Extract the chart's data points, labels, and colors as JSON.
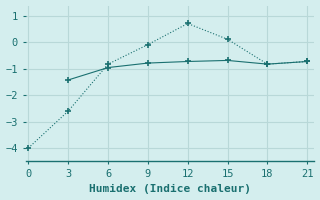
{
  "xlabel": "Humidex (Indice chaleur)",
  "bg_color": "#d4eeee",
  "grid_color": "#b8d8d8",
  "line_color": "#1a7070",
  "line1_x": [
    0,
    3,
    6,
    9,
    12,
    15,
    18,
    21
  ],
  "line1_y": [
    -4.0,
    -2.6,
    -0.82,
    -0.08,
    0.72,
    0.12,
    -0.82,
    -0.72
  ],
  "line2_x": [
    3,
    6,
    9,
    12,
    15,
    18,
    21
  ],
  "line2_y": [
    -1.42,
    -0.95,
    -0.78,
    -0.72,
    -0.68,
    -0.82,
    -0.72
  ],
  "xlim": [
    -0.2,
    21.5
  ],
  "ylim": [
    -4.5,
    1.4
  ],
  "xticks": [
    0,
    3,
    6,
    9,
    12,
    15,
    18,
    21
  ],
  "yticks": [
    -4,
    -3,
    -2,
    -1,
    0,
    1
  ],
  "xlabel_fontsize": 8,
  "tick_fontsize": 7.5
}
